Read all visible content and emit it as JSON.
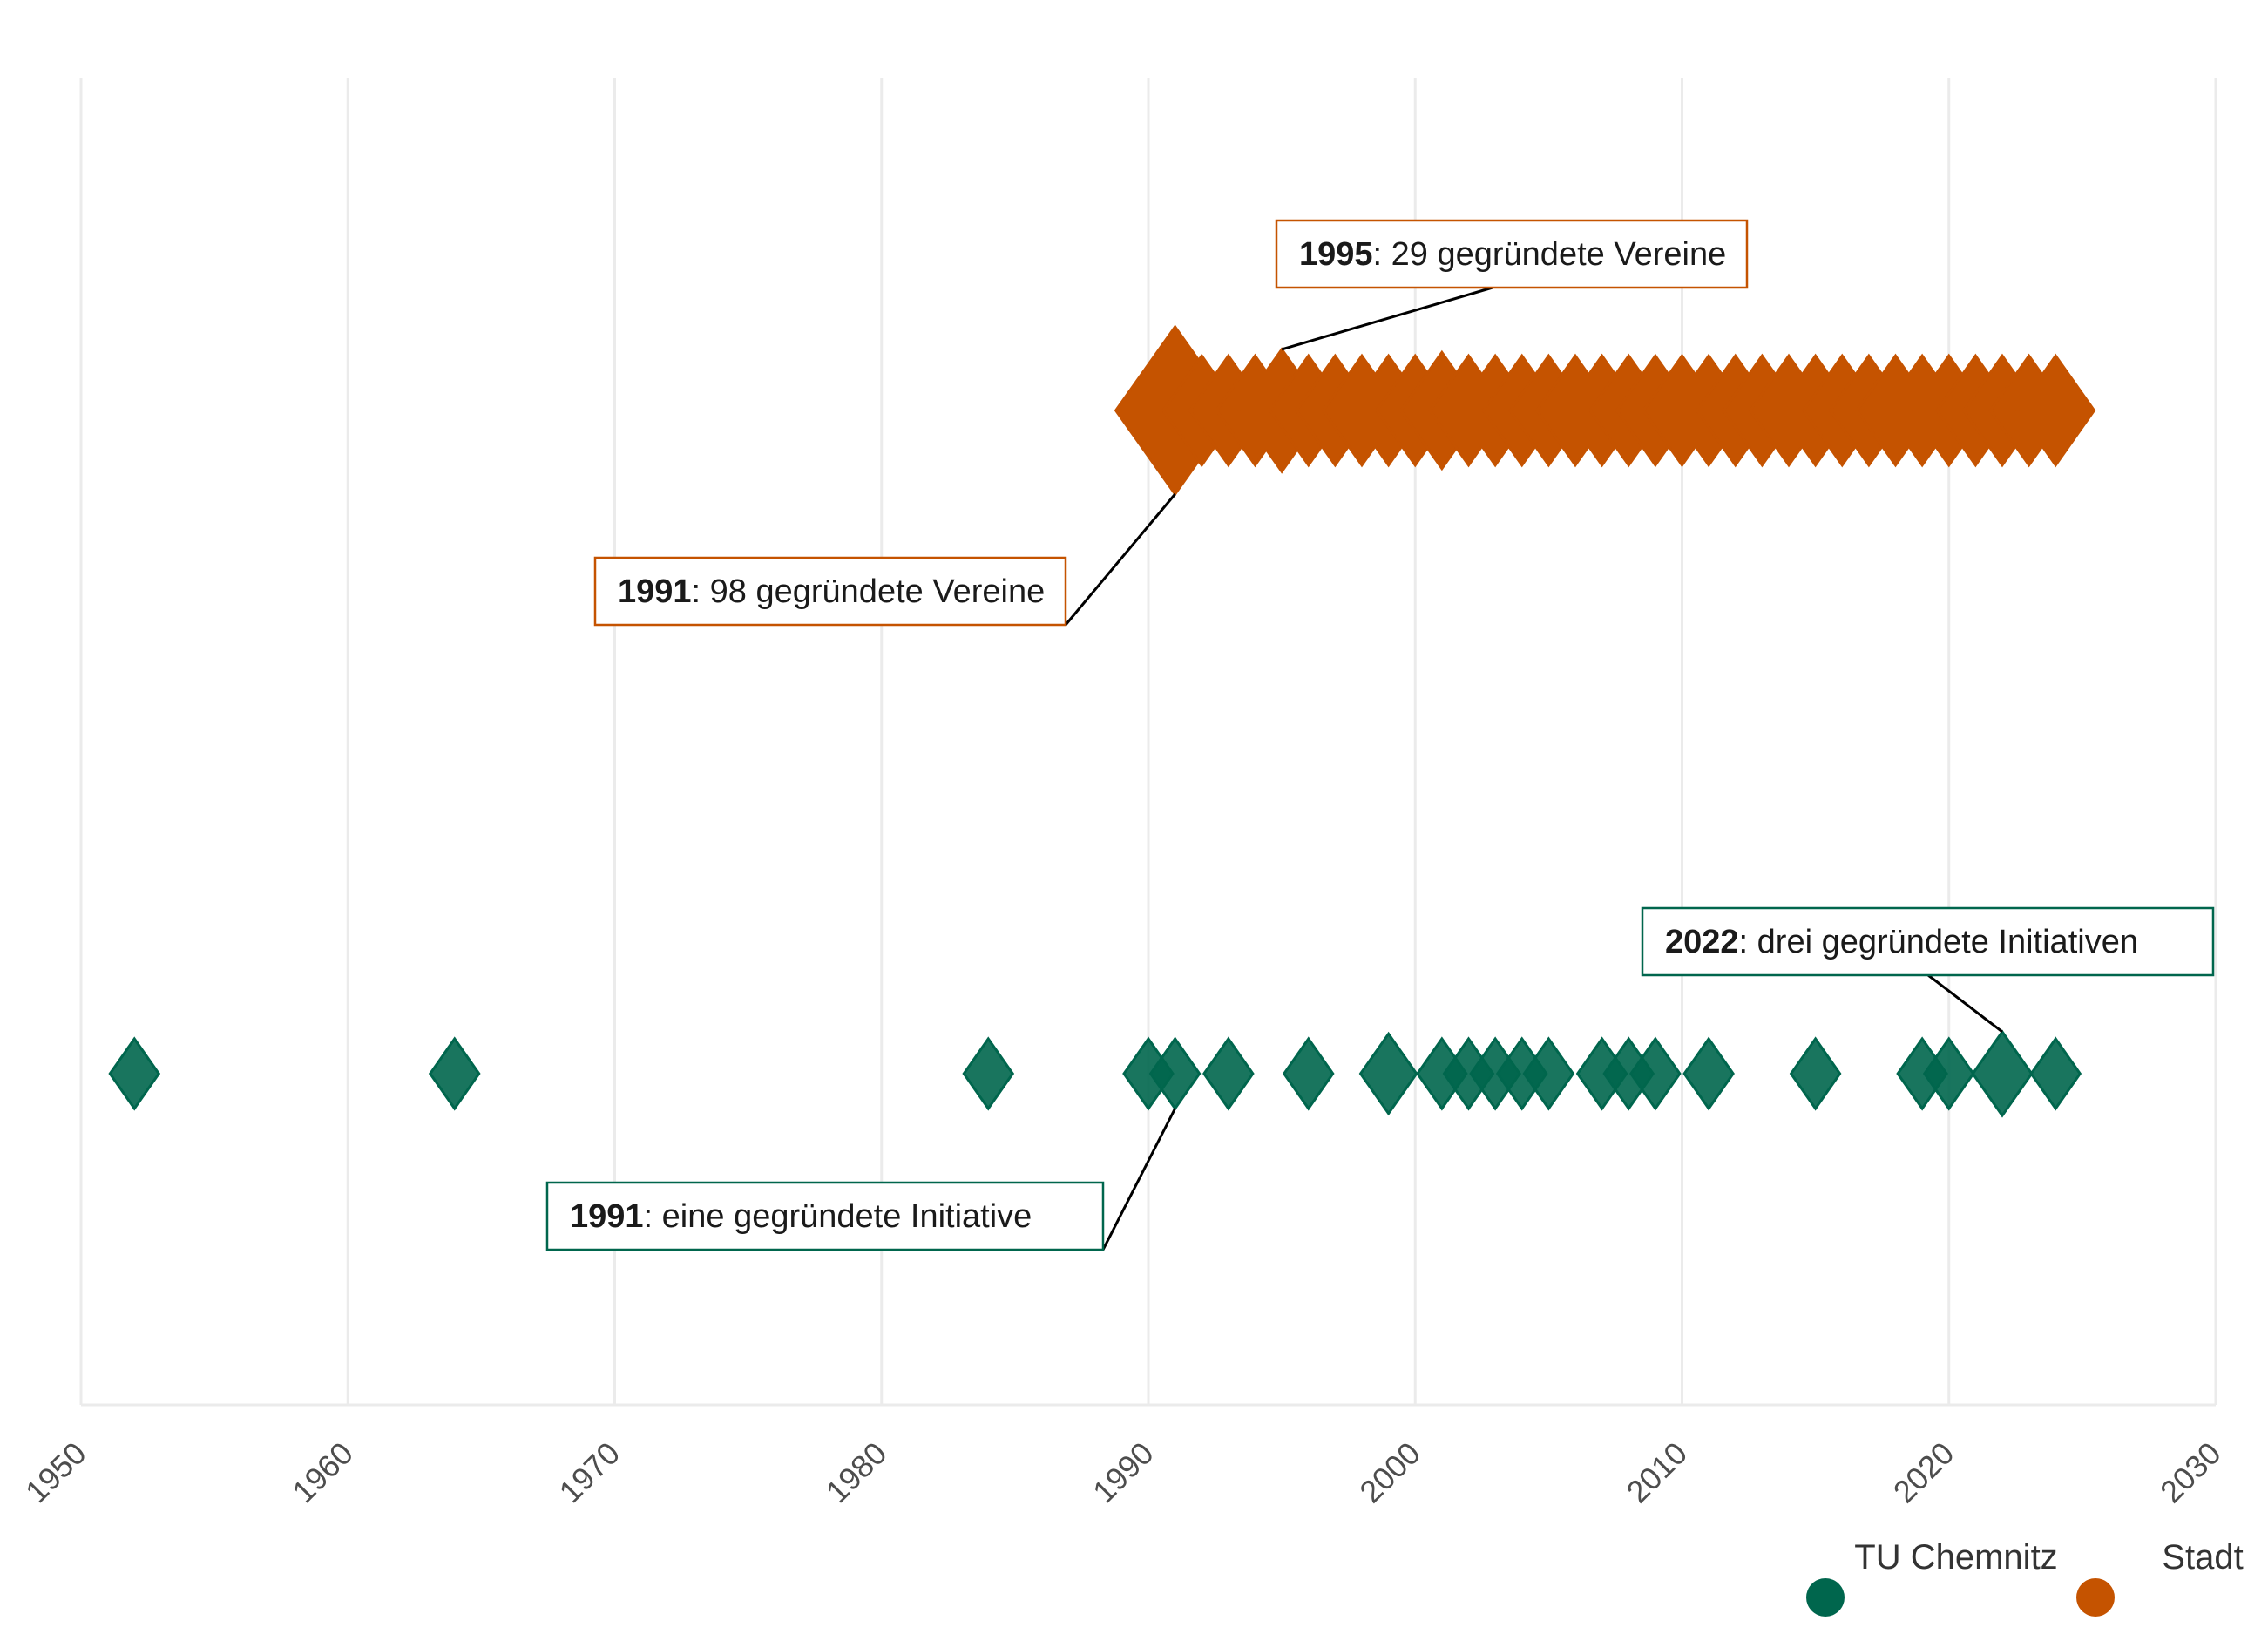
{
  "chart_data": {
    "type": "scatter",
    "title": "",
    "xlabel": "",
    "ylabel": "",
    "xlim": [
      1950,
      2030
    ],
    "x_ticks": [
      "1950",
      "1960",
      "1970",
      "1980",
      "1990",
      "2000",
      "2010",
      "2020",
      "2030"
    ],
    "grid": true,
    "legend_position": "bottom-right",
    "series": [
      {
        "name": "Stadt",
        "color": "#c55300",
        "points": [
          {
            "x": 1991,
            "count": 98
          },
          {
            "x": 1992,
            "count": 17
          },
          {
            "x": 1993,
            "count": 17
          },
          {
            "x": 1994,
            "count": 17
          },
          {
            "x": 1995,
            "count": 29
          },
          {
            "x": 1996,
            "count": 17
          },
          {
            "x": 1997,
            "count": 17
          },
          {
            "x": 1998,
            "count": 17
          },
          {
            "x": 1999,
            "count": 17
          },
          {
            "x": 2000,
            "count": 17
          },
          {
            "x": 2001,
            "count": 23
          },
          {
            "x": 2002,
            "count": 17
          },
          {
            "x": 2003,
            "count": 17
          },
          {
            "x": 2004,
            "count": 17
          },
          {
            "x": 2005,
            "count": 17
          },
          {
            "x": 2006,
            "count": 17
          },
          {
            "x": 2007,
            "count": 17
          },
          {
            "x": 2008,
            "count": 17
          },
          {
            "x": 2009,
            "count": 17
          },
          {
            "x": 2010,
            "count": 17
          },
          {
            "x": 2011,
            "count": 17
          },
          {
            "x": 2012,
            "count": 17
          },
          {
            "x": 2013,
            "count": 17
          },
          {
            "x": 2014,
            "count": 17
          },
          {
            "x": 2015,
            "count": 17
          },
          {
            "x": 2016,
            "count": 17
          },
          {
            "x": 2017,
            "count": 17
          },
          {
            "x": 2018,
            "count": 17
          },
          {
            "x": 2019,
            "count": 17
          },
          {
            "x": 2020,
            "count": 17
          },
          {
            "x": 2021,
            "count": 17
          },
          {
            "x": 2022,
            "count": 17
          },
          {
            "x": 2023,
            "count": 17
          },
          {
            "x": 2024,
            "count": 17
          }
        ]
      },
      {
        "name": "TU Chemnitz",
        "color": "#00664d",
        "points": [
          {
            "x": 1952,
            "count": 1
          },
          {
            "x": 1964,
            "count": 1
          },
          {
            "x": 1984,
            "count": 1
          },
          {
            "x": 1990,
            "count": 1
          },
          {
            "x": 1991,
            "count": 1
          },
          {
            "x": 1993,
            "count": 1
          },
          {
            "x": 1996,
            "count": 1
          },
          {
            "x": 1999,
            "count": 2
          },
          {
            "x": 2001,
            "count": 1
          },
          {
            "x": 2002,
            "count": 1
          },
          {
            "x": 2003,
            "count": 1
          },
          {
            "x": 2004,
            "count": 1
          },
          {
            "x": 2005,
            "count": 1
          },
          {
            "x": 2007,
            "count": 1
          },
          {
            "x": 2008,
            "count": 1
          },
          {
            "x": 2009,
            "count": 1
          },
          {
            "x": 2011,
            "count": 1
          },
          {
            "x": 2015,
            "count": 1
          },
          {
            "x": 2019,
            "count": 1
          },
          {
            "x": 2020,
            "count": 1
          },
          {
            "x": 2022,
            "count": 3
          },
          {
            "x": 2024,
            "count": 1
          }
        ]
      }
    ],
    "annotations": [
      {
        "series": "Stadt",
        "x": 1995,
        "year": "1995",
        "text": ": 29 gegründete Vereine"
      },
      {
        "series": "Stadt",
        "x": 1991,
        "year": "1991",
        "text": ": 98 gegründete Vereine"
      },
      {
        "series": "TU Chemnitz",
        "x": 2022,
        "year": "2022",
        "text": ": drei gegründete Initiativen"
      },
      {
        "series": "TU Chemnitz",
        "x": 1991,
        "year": "1991",
        "text": ": eine gegründete Initiative"
      }
    ],
    "legend": [
      {
        "label": "TU Chemnitz",
        "color": "#00664d"
      },
      {
        "label": "Stadt",
        "color": "#c55300"
      }
    ]
  }
}
